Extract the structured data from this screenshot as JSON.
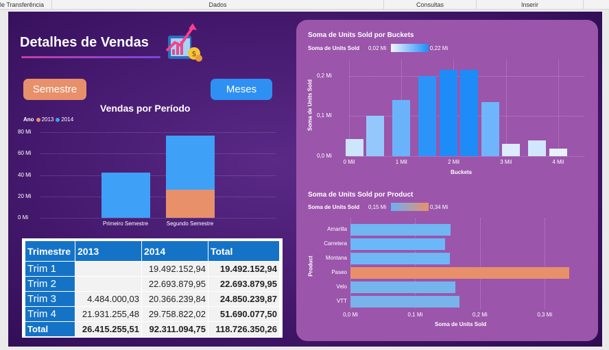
{
  "ribbon": {
    "tabs": [
      "le Transferência",
      "Dados",
      "Consultas",
      "Inserir"
    ]
  },
  "header": {
    "title": "Detalhes de Vendas"
  },
  "buttons": {
    "semestre": "Semestre",
    "meses": "Meses"
  },
  "colors": {
    "accent_2013": "#e8906a",
    "accent_2014": "#3ea0f7",
    "panel": "#9b55ab"
  },
  "vendas_chart": {
    "title": "Vendas por Período",
    "legend_title": "Ano",
    "y_ticks": [
      "80 Mi",
      "60 Mi",
      "40 Mi",
      "20 Mi",
      "0 Mi"
    ]
  },
  "table": {
    "headers": [
      "Trimestre",
      "2013",
      "2014",
      "Total"
    ],
    "rows": [
      {
        "label": "Trim 1",
        "v2013": "",
        "v2014": "19.492.152,94",
        "total": "19.492.152,94"
      },
      {
        "label": "Trim 2",
        "v2013": "",
        "v2014": "22.693.879,95",
        "total": "22.693.879,95"
      },
      {
        "label": "Trim 3",
        "v2013": "4.484.000,03",
        "v2014": "20.366.239,84",
        "total": "24.850.239,87"
      },
      {
        "label": "Trim 4",
        "v2013": "21.931.255,48",
        "v2014": "29.758.822,02",
        "total": "51.690.077,50"
      }
    ],
    "total_row": {
      "label": "Total",
      "v2013": "26.415.255,51",
      "v2014": "92.311.094,75",
      "total": "118.726.350,26"
    }
  },
  "buckets_chart": {
    "title": "Soma de Units Sold por Buckets",
    "legend_label": "Soma de Units Sold",
    "legend_min": "0,02 Mi",
    "legend_max": "0,22 Mi",
    "y_ticks": [
      "0,2 Mi",
      "0,1 Mi",
      "0,0 Mi"
    ],
    "x_ticks": [
      "0 Mil",
      "1 Mil",
      "2 Mil",
      "3 Mil",
      "4 Mil"
    ]
  },
  "product_chart": {
    "title": "Soma de Units Sold por Product",
    "legend_label": "Soma de Units Sold",
    "legend_min": "0,15 Mi",
    "legend_max": "0,34 Mi",
    "x_ticks": [
      "0,0 Mi",
      "0,1 Mi",
      "0,2 Mi",
      "0,3 Mi"
    ]
  },
  "chart_data": [
    {
      "type": "bar",
      "title": "Vendas por Período",
      "categories": [
        "Primeiro Semestre",
        "Segundo Semestre"
      ],
      "series": [
        {
          "name": "2013",
          "values": [
            0,
            26.4
          ]
        },
        {
          "name": "2014",
          "values": [
            42.2,
            50.1
          ]
        }
      ],
      "stacked": true,
      "legend_title": "Ano",
      "ylim": [
        0,
        80
      ],
      "y_unit": "Mi",
      "legend": "top-left",
      "grid": true
    },
    {
      "type": "bar",
      "title": "Soma de Units Sold por Buckets",
      "xlabel": "Buckets",
      "ylabel": "Soma de Units Sold",
      "x": [
        0.1,
        0.5,
        1.0,
        1.5,
        1.9,
        2.3,
        2.7,
        3.1,
        3.6,
        4.0
      ],
      "values": [
        0.043,
        0.1,
        0.14,
        0.2,
        0.215,
        0.215,
        0.135,
        0.03,
        0.04,
        0.018
      ],
      "x_unit": "Mil",
      "y_unit": "Mi",
      "xlim": [
        0,
        4.5
      ],
      "ylim": [
        0,
        0.24
      ],
      "grid": true
    },
    {
      "type": "bar",
      "orientation": "horizontal",
      "title": "Soma de Units Sold por Product",
      "xlabel": "Soma de Units Sold",
      "ylabel": "Product",
      "categories": [
        "Amarilla",
        "Carretera",
        "Montana",
        "Paseo",
        "Velo",
        "VTT"
      ],
      "values": [
        0.155,
        0.146,
        0.154,
        0.338,
        0.162,
        0.168
      ],
      "x_unit": "Mi",
      "xlim": [
        0,
        0.34
      ],
      "grid": true
    }
  ]
}
